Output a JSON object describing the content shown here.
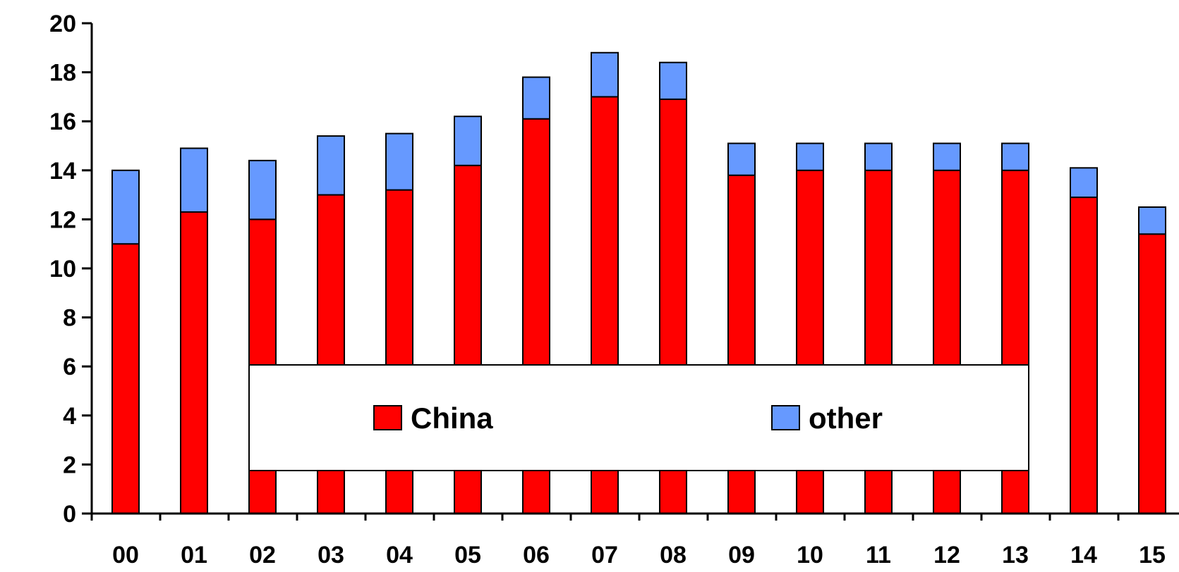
{
  "chart_data": {
    "type": "bar",
    "stacked": true,
    "categories": [
      "00",
      "01",
      "02",
      "03",
      "04",
      "05",
      "06",
      "07",
      "08",
      "09",
      "10",
      "11",
      "12",
      "13",
      "14",
      "15"
    ],
    "series": [
      {
        "name": "China",
        "color": "#ff0000",
        "values": [
          11.0,
          12.3,
          12.0,
          13.0,
          13.2,
          14.2,
          16.1,
          17.0,
          16.9,
          13.8,
          14.0,
          14.0,
          14.0,
          14.0,
          12.9,
          11.4
        ]
      },
      {
        "name": "other",
        "color": "#6699ff",
        "values": [
          3.0,
          2.6,
          2.4,
          2.4,
          2.3,
          2.0,
          1.7,
          1.8,
          1.5,
          1.3,
          1.1,
          1.1,
          1.1,
          1.1,
          1.2,
          1.1
        ]
      }
    ],
    "title": "",
    "xlabel": "",
    "ylabel": "",
    "ylim": [
      0,
      20
    ],
    "yticks": [
      "0",
      "2",
      "4",
      "6",
      "8",
      "10",
      "12",
      "14",
      "16",
      "18",
      "20"
    ],
    "grid": false,
    "legend_position": "center-bottom"
  }
}
